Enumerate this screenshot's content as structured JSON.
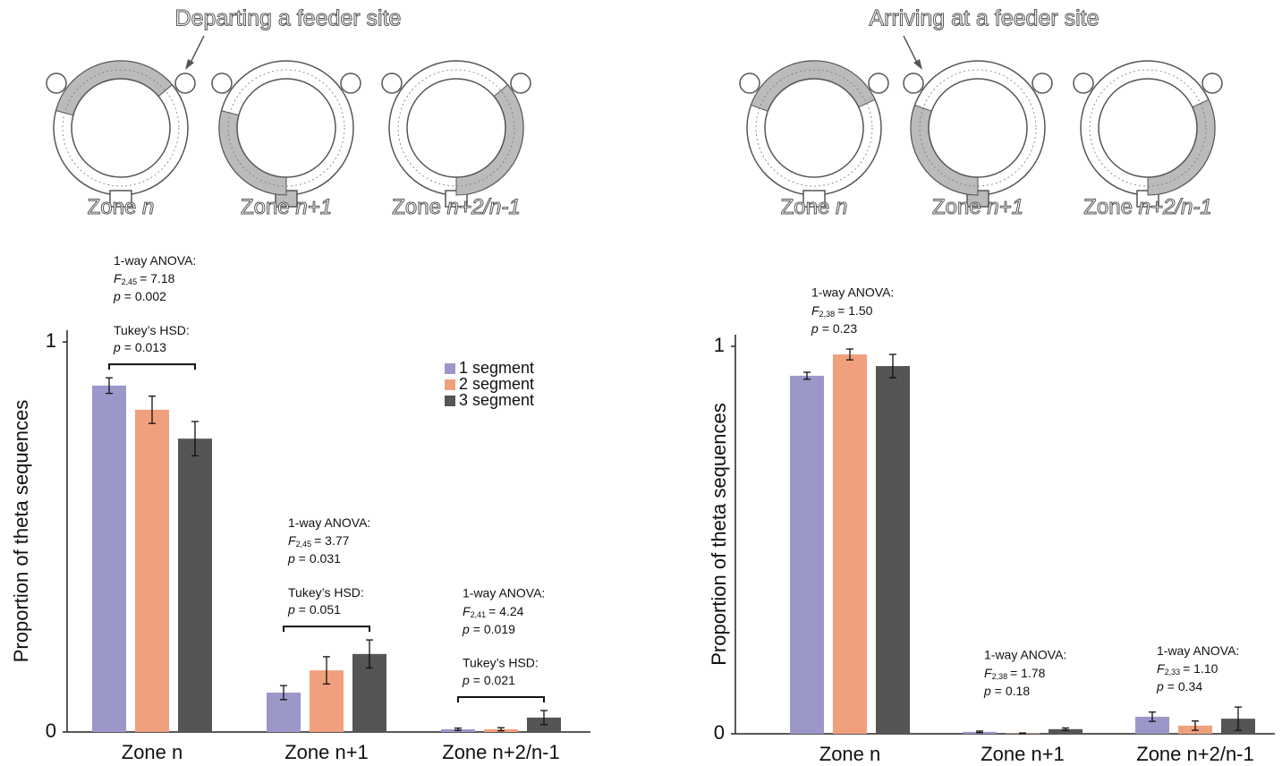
{
  "figure": {
    "diagrams": [
      {
        "title": "Departing a feeder site",
        "zones": [
          {
            "prefix": "Zone ",
            "var": "n"
          },
          {
            "prefix": "Zone ",
            "var": "n+1"
          },
          {
            "prefix": "Zone ",
            "var": "n+2/n-1"
          }
        ]
      },
      {
        "title": "Arriving at a feeder site",
        "zones": [
          {
            "prefix": "Zone ",
            "var": "n"
          },
          {
            "prefix": "Zone ",
            "var": "n+1"
          },
          {
            "prefix": "Zone ",
            "var": "n+2/n-1"
          }
        ]
      }
    ]
  },
  "chart_data": [
    {
      "type": "bar",
      "y_label": "Proportion of theta sequences",
      "categories": [
        "Zone n",
        "Zone n+1",
        "Zone n+2/n-1"
      ],
      "series": [
        {
          "name": "1 segment",
          "color": "#9b97c9",
          "values": [
            0.888,
            0.101,
            0.007
          ],
          "errors": [
            0.02,
            0.018,
            0.003
          ]
        },
        {
          "name": "2 segment",
          "color": "#f0a07c",
          "values": [
            0.826,
            0.158,
            0.007
          ],
          "errors": [
            0.035,
            0.035,
            0.004
          ]
        },
        {
          "name": "3 segment",
          "color": "#555555",
          "values": [
            0.752,
            0.2,
            0.037
          ],
          "errors": [
            0.044,
            0.036,
            0.018
          ]
        }
      ],
      "ylim": [
        0,
        1.03
      ],
      "yticks": [
        0,
        1
      ],
      "legend": "upper right",
      "stats": [
        {
          "anova": {
            "heading": "1-way ANOVA:",
            "f": "F",
            "df": "2,45",
            "f_value": "= 7.18",
            "p": "p",
            "p_value": "= 0.002"
          },
          "tukey": {
            "heading": "Tukey’s HSD:",
            "p": "p",
            "p_value": "= 0.013"
          }
        },
        {
          "anova": {
            "heading": "1-way ANOVA:",
            "f": "F",
            "df": "2,45",
            "f_value": "= 3.77",
            "p": "p",
            "p_value": "= 0.031"
          },
          "tukey": {
            "heading": "Tukey’s HSD:",
            "p": "p",
            "p_value": "= 0.051"
          }
        },
        {
          "anova": {
            "heading": "1-way ANOVA:",
            "f": "F",
            "df": "2,41",
            "f_value": "= 4.24",
            "p": "p",
            "p_value": "= 0.019"
          },
          "tukey": {
            "heading": "Tukey’s HSD:",
            "p": "p",
            "p_value": "= 0.021"
          }
        }
      ]
    },
    {
      "type": "bar",
      "y_label": "Proportion of theta sequences",
      "categories": [
        "Zone n",
        "Zone n+1",
        "Zone n+2/n-1"
      ],
      "series": [
        {
          "color": "#9b97c9",
          "values": [
            0.924,
            0.005,
            0.044
          ],
          "errors": [
            0.009,
            0.002,
            0.012
          ]
        },
        {
          "color": "#f0a07c",
          "values": [
            0.979,
            0.001,
            0.021
          ],
          "errors": [
            0.014,
            0.001,
            0.012
          ]
        },
        {
          "color": "#555555",
          "values": [
            0.949,
            0.012,
            0.039
          ],
          "errors": [
            0.03,
            0.003,
            0.03
          ]
        }
      ],
      "ylim": [
        0,
        1.03
      ],
      "yticks": [
        0,
        1
      ],
      "stats": [
        {
          "anova": {
            "heading": "1-way ANOVA:",
            "f": "F",
            "df": "2,38",
            "f_value": "= 1.50",
            "p": "p",
            "p_value": "= 0.23"
          }
        },
        {
          "anova": {
            "heading": "1-way ANOVA:",
            "f": "F",
            "df": "2,38",
            "f_value": "= 1.78",
            "p": "p",
            "p_value": "= 0.18"
          }
        },
        {
          "anova": {
            "heading": "1-way ANOVA:",
            "f": "F",
            "df": "2,33",
            "f_value": "= 1.10",
            "p": "p",
            "p_value": "= 0.34"
          }
        }
      ]
    }
  ]
}
